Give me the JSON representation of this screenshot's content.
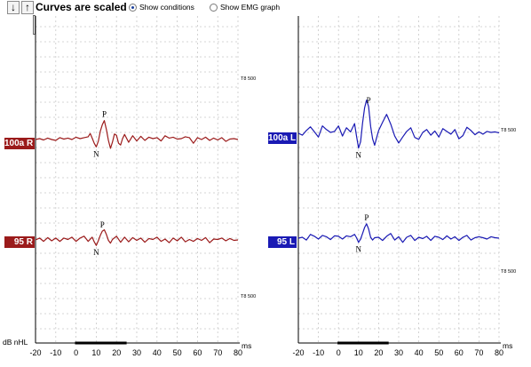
{
  "toolbar": {
    "up_arrow_icon": "arrow-down",
    "down_arrow_icon": "arrow-up",
    "title": "Curves are scaled",
    "show_conditions_label": "Show conditions",
    "show_conditions_selected": true,
    "show_emg_label": "Show EMG graph",
    "show_emg_selected": false
  },
  "y_unit_label": "dB nHL",
  "x_unit_label": "ms",
  "colors": {
    "right_ear": "#9b1b1b",
    "left_ear": "#1a1ab4",
    "grid": "#c8c8c8"
  },
  "chart_data": [
    {
      "type": "line",
      "panel": "right-ear",
      "xlabel": "ms",
      "ylabel": "dB nHL",
      "x_ticks": [
        -20,
        -10,
        0,
        10,
        20,
        30,
        40,
        50,
        60,
        70,
        80
      ],
      "xlim": [
        -20,
        80
      ],
      "grid": true,
      "scale_markers": [
        "T8 500",
        "T8 500"
      ],
      "series": [
        {
          "name": "100a R",
          "color": "#9b1b1b",
          "peaks": [
            {
              "label": "P",
              "x": 14
            },
            {
              "label": "N",
              "x": 10
            }
          ],
          "x": [
            -20,
            -18,
            -16,
            -14,
            -12,
            -10,
            -8,
            -6,
            -4,
            -2,
            0,
            2,
            4,
            6,
            7,
            8,
            9,
            10,
            11,
            12,
            13,
            14,
            15,
            16,
            17,
            18,
            19,
            20,
            21,
            22,
            23,
            24,
            26,
            28,
            30,
            32,
            34,
            36,
            38,
            40,
            42,
            44,
            46,
            48,
            50,
            52,
            54,
            56,
            58,
            60,
            62,
            64,
            66,
            68,
            70,
            72,
            74,
            76,
            78,
            80
          ],
          "y": [
            0,
            0.2,
            -0.1,
            0.3,
            0,
            -0.2,
            0.4,
            0.1,
            0.3,
            0,
            0.5,
            0.2,
            0.4,
            0.6,
            1.3,
            0.3,
            -0.8,
            -1.6,
            -0.4,
            1.8,
            3.2,
            4.1,
            2.2,
            -0.2,
            -1.9,
            -0.6,
            1.2,
            0.9,
            -0.8,
            -1.2,
            0.2,
            1.1,
            -0.6,
            0.8,
            -0.3,
            0.7,
            -0.2,
            0.5,
            0.2,
            0.4,
            -0.3,
            0.8,
            0.3,
            0.5,
            0.1,
            0.2,
            0.6,
            0.4,
            -0.8,
            0.4,
            0,
            0.5,
            -0.2,
            0.3,
            -0.1,
            0.4,
            -0.4,
            0.1,
            0.2,
            0
          ]
        },
        {
          "name": "95 R",
          "color": "#9b1b1b",
          "peaks": [
            {
              "label": "P",
              "x": 13
            },
            {
              "label": "N",
              "x": 10
            }
          ],
          "x": [
            -20,
            -18,
            -16,
            -14,
            -12,
            -10,
            -8,
            -6,
            -4,
            -2,
            0,
            2,
            4,
            6,
            8,
            9,
            10,
            11,
            12,
            13,
            14,
            15,
            16,
            17,
            18,
            20,
            22,
            24,
            26,
            28,
            30,
            32,
            34,
            36,
            38,
            40,
            42,
            44,
            46,
            48,
            50,
            52,
            54,
            56,
            58,
            60,
            62,
            64,
            66,
            68,
            70,
            72,
            74,
            76,
            78,
            80
          ],
          "y": [
            0,
            0.4,
            -0.3,
            0.5,
            -0.2,
            0.4,
            -0.3,
            0.4,
            0.1,
            0.6,
            -0.3,
            0.4,
            0.8,
            -0.3,
            0.6,
            -0.4,
            -1.2,
            -0.2,
            1.0,
            1.9,
            2.2,
            1.2,
            -0.1,
            -0.7,
            0.1,
            0.8,
            -0.5,
            0.6,
            -0.4,
            0.5,
            -0.1,
            0.4,
            -0.5,
            0.3,
            0.1,
            0.6,
            -0.3,
            0.2,
            -0.6,
            0.4,
            -0.2,
            0.6,
            -0.4,
            0.1,
            -0.3,
            0.3,
            -0.1,
            0.5,
            -0.6,
            0.2,
            0.1,
            0.4,
            -0.2,
            0.3,
            -0.1,
            0
          ]
        }
      ]
    },
    {
      "type": "line",
      "panel": "left-ear",
      "xlabel": "ms",
      "x_ticks": [
        -20,
        -10,
        0,
        10,
        20,
        30,
        40,
        50,
        60,
        70,
        80
      ],
      "xlim": [
        -20,
        80
      ],
      "grid": true,
      "scale_markers": [
        "T8 500",
        "T8 500"
      ],
      "series": [
        {
          "name": "100a L",
          "color": "#1a1ab4",
          "peaks": [
            {
              "label": "P",
              "x": 15
            },
            {
              "label": "N",
              "x": 10
            }
          ],
          "x": [
            -20,
            -18,
            -16,
            -14,
            -12,
            -10,
            -8,
            -6,
            -4,
            -2,
            0,
            2,
            4,
            6,
            8,
            9,
            10,
            11,
            12,
            13,
            14,
            15,
            16,
            17,
            18,
            19,
            20,
            22,
            24,
            26,
            28,
            30,
            32,
            34,
            36,
            38,
            40,
            42,
            44,
            46,
            48,
            50,
            52,
            54,
            56,
            58,
            60,
            62,
            64,
            66,
            68,
            70,
            72,
            74,
            76,
            78,
            80
          ],
          "y": [
            0,
            -0.4,
            0.6,
            1.4,
            0.3,
            -0.8,
            1.6,
            0.8,
            0.2,
            0.4,
            1.6,
            -0.6,
            1.2,
            0.3,
            2.1,
            -0.6,
            -3.2,
            -1.8,
            2.2,
            5.5,
            7.2,
            5.8,
            1.5,
            -1.2,
            -2.6,
            -1.0,
            0.6,
            2.4,
            4.1,
            2.0,
            -0.6,
            -2.1,
            -0.8,
            0.4,
            1.2,
            -0.9,
            -1.3,
            0.2,
            0.8,
            -0.4,
            0.5,
            -0.8,
            1.0,
            0.4,
            -0.2,
            0.8,
            -1.2,
            -0.5,
            1.3,
            0.6,
            -0.3,
            0.3,
            -0.2,
            0.4,
            0.2,
            0.3,
            0.1
          ]
        },
        {
          "name": "95 L",
          "color": "#1a1ab4",
          "peaks": [
            {
              "label": "P",
              "x": 14
            },
            {
              "label": "N",
              "x": 10
            }
          ],
          "x": [
            -20,
            -18,
            -16,
            -14,
            -12,
            -10,
            -8,
            -6,
            -4,
            -2,
            0,
            2,
            4,
            6,
            8,
            9,
            10,
            11,
            12,
            13,
            14,
            15,
            16,
            17,
            18,
            20,
            22,
            24,
            26,
            28,
            30,
            32,
            34,
            36,
            38,
            40,
            42,
            44,
            46,
            48,
            50,
            52,
            54,
            56,
            58,
            60,
            62,
            64,
            66,
            68,
            70,
            72,
            74,
            76,
            78,
            80
          ],
          "y": [
            0,
            0.2,
            -0.4,
            0.8,
            0.4,
            -0.2,
            0.6,
            0.3,
            -0.3,
            0.5,
            0.4,
            -0.2,
            0.5,
            0.3,
            0.8,
            0.1,
            -0.9,
            -0.2,
            1.0,
            2.3,
            3.1,
            2.0,
            0.2,
            -0.4,
            0.1,
            0.2,
            -0.5,
            0.4,
            1.0,
            -0.4,
            0.3,
            -0.9,
            0.2,
            0.6,
            -0.5,
            0.2,
            -0.1,
            0.4,
            -0.5,
            0.4,
            0.2,
            -0.3,
            0.5,
            -0.2,
            0.3,
            -0.5,
            0.2,
            0.6,
            -0.4,
            0.1,
            0.3,
            0.1,
            -0.2,
            0.3,
            0.1,
            0
          ]
        }
      ]
    }
  ]
}
